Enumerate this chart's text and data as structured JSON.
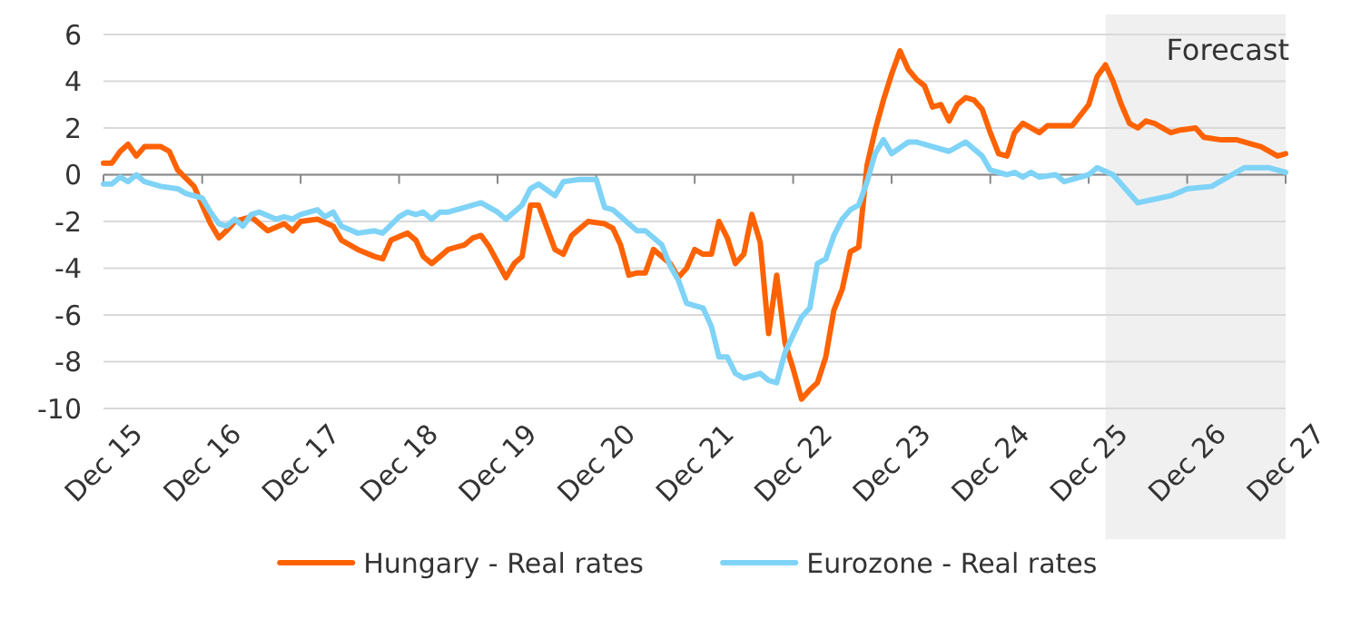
{
  "chart_data": {
    "type": "line",
    "xlim": [
      "2015-12",
      "2027-12"
    ],
    "ylim": [
      -10,
      6
    ],
    "yticks": [
      -10,
      -8,
      -6,
      -4,
      -2,
      0,
      2,
      4,
      6
    ],
    "xticks": [
      {
        "value": "2015-12",
        "label": "Dec 15"
      },
      {
        "value": "2016-12",
        "label": "Dec 16"
      },
      {
        "value": "2017-12",
        "label": "Dec 17"
      },
      {
        "value": "2018-12",
        "label": "Dec 18"
      },
      {
        "value": "2019-12",
        "label": "Dec 19"
      },
      {
        "value": "2020-12",
        "label": "Dec 20"
      },
      {
        "value": "2021-12",
        "label": "Dec 21"
      },
      {
        "value": "2022-12",
        "label": "Dec 22"
      },
      {
        "value": "2023-12",
        "label": "Dec 23"
      },
      {
        "value": "2024-12",
        "label": "Dec 24"
      },
      {
        "value": "2025-12",
        "label": "Dec 25"
      },
      {
        "value": "2026-12",
        "label": "Dec 26"
      },
      {
        "value": "2027-12",
        "label": "Dec 27"
      }
    ],
    "grid": "y",
    "legend": "bottom",
    "bands": [
      {
        "axis": "x",
        "from": "2026-02",
        "to": "2027-12",
        "label": "Forecast",
        "color": "#f0f0f0"
      }
    ],
    "series": [
      {
        "name": "Hungary - Real rates",
        "color": "#ff6200",
        "x": [
          "2015-12",
          "2016-01",
          "2016-02",
          "2016-03",
          "2016-04",
          "2016-05",
          "2016-07",
          "2016-08",
          "2016-09",
          "2016-11",
          "2016-12",
          "2017-01",
          "2017-02",
          "2017-03",
          "2017-04",
          "2017-06",
          "2017-08",
          "2017-10",
          "2017-11",
          "2017-12",
          "2018-02",
          "2018-04",
          "2018-05",
          "2018-07",
          "2018-09",
          "2018-10",
          "2018-11",
          "2019-01",
          "2019-02",
          "2019-03",
          "2019-04",
          "2019-06",
          "2019-08",
          "2019-09",
          "2019-10",
          "2019-11",
          "2020-01",
          "2020-02",
          "2020-03",
          "2020-04",
          "2020-05",
          "2020-07",
          "2020-08",
          "2020-09",
          "2020-11",
          "2021-01",
          "2021-02",
          "2021-03",
          "2021-04",
          "2021-05",
          "2021-06",
          "2021-07",
          "2021-09",
          "2021-10",
          "2021-11",
          "2021-12",
          "2022-01",
          "2022-02",
          "2022-03",
          "2022-04",
          "2022-05",
          "2022-06",
          "2022-07",
          "2022-08",
          "2022-09",
          "2022-10",
          "2022-11",
          "2022-12",
          "2023-01",
          "2023-02",
          "2023-03",
          "2023-04",
          "2023-05",
          "2023-06",
          "2023-07",
          "2023-08",
          "2023-09",
          "2023-10",
          "2023-11",
          "2023-12",
          "2024-01",
          "2024-02",
          "2024-03",
          "2024-04",
          "2024-05",
          "2024-06",
          "2024-07",
          "2024-08",
          "2024-09",
          "2024-10",
          "2024-11",
          "2024-12",
          "2025-01",
          "2025-02",
          "2025-03",
          "2025-04",
          "2025-06",
          "2025-07",
          "2025-10",
          "2025-12",
          "2026-01",
          "2026-02",
          "2026-03",
          "2026-04",
          "2026-05",
          "2026-06",
          "2026-07",
          "2026-08",
          "2026-10",
          "2026-11",
          "2027-01",
          "2027-02",
          "2027-04",
          "2027-06",
          "2027-08",
          "2027-09",
          "2027-11",
          "2027-12"
        ],
        "values": [
          0.5,
          0.5,
          1.0,
          1.3,
          0.8,
          1.2,
          1.2,
          1.0,
          0.2,
          -0.5,
          -1.3,
          -2.1,
          -2.7,
          -2.4,
          -2.0,
          -1.8,
          -2.4,
          -2.1,
          -2.4,
          -2.0,
          -1.9,
          -2.2,
          -2.8,
          -3.2,
          -3.5,
          -3.6,
          -2.8,
          -2.5,
          -2.8,
          -3.5,
          -3.8,
          -3.2,
          -3.0,
          -2.7,
          -2.6,
          -3.1,
          -4.4,
          -3.8,
          -3.5,
          -1.3,
          -1.3,
          -3.2,
          -3.4,
          -2.6,
          -2.0,
          -2.1,
          -2.3,
          -3.0,
          -4.3,
          -4.2,
          -4.2,
          -3.2,
          -3.8,
          -4.4,
          -4.0,
          -3.2,
          -3.4,
          -3.4,
          -2.0,
          -2.7,
          -3.8,
          -3.4,
          -1.7,
          -2.9,
          -6.8,
          -4.3,
          -7.2,
          -8.3,
          -9.6,
          -9.2,
          -8.9,
          -7.8,
          -5.8,
          -4.9,
          -3.3,
          -3.1,
          0.4,
          1.9,
          3.2,
          4.3,
          5.3,
          4.5,
          4.1,
          3.8,
          2.9,
          3.0,
          2.3,
          3.0,
          3.3,
          3.2,
          2.8,
          1.8,
          0.9,
          0.8,
          1.8,
          2.2,
          1.8,
          2.1,
          2.1,
          3.0,
          4.2,
          4.7,
          4.0,
          3.0,
          2.2,
          2.0,
          2.3,
          2.2,
          1.8,
          1.9,
          2.0,
          1.6,
          1.5,
          1.5,
          1.3,
          1.2,
          0.8,
          0.9
        ]
      },
      {
        "name": "Eurozone - Real rates",
        "color": "#7fd3f7",
        "x": [
          "2015-12",
          "2016-01",
          "2016-02",
          "2016-03",
          "2016-04",
          "2016-05",
          "2016-07",
          "2016-09",
          "2016-10",
          "2016-12",
          "2017-01",
          "2017-02",
          "2017-03",
          "2017-04",
          "2017-05",
          "2017-06",
          "2017-07",
          "2017-09",
          "2017-10",
          "2017-11",
          "2017-12",
          "2018-02",
          "2018-03",
          "2018-04",
          "2018-05",
          "2018-07",
          "2018-09",
          "2018-10",
          "2018-12",
          "2019-01",
          "2019-02",
          "2019-03",
          "2019-04",
          "2019-05",
          "2019-06",
          "2019-07",
          "2019-08",
          "2019-10",
          "2019-12",
          "2020-01",
          "2020-03",
          "2020-04",
          "2020-05",
          "2020-07",
          "2020-08",
          "2020-10",
          "2020-12",
          "2021-01",
          "2021-02",
          "2021-04",
          "2021-05",
          "2021-06",
          "2021-08",
          "2021-09",
          "2021-10",
          "2021-11",
          "2022-01",
          "2022-02",
          "2022-03",
          "2022-04",
          "2022-05",
          "2022-06",
          "2022-08",
          "2022-09",
          "2022-10",
          "2022-11",
          "2023-01",
          "2023-02",
          "2023-03",
          "2023-04",
          "2023-05",
          "2023-06",
          "2023-07",
          "2023-08",
          "2023-09",
          "2023-10",
          "2023-11",
          "2023-12",
          "2024-02",
          "2024-03",
          "2024-05",
          "2024-07",
          "2024-09",
          "2024-11",
          "2024-12",
          "2025-02",
          "2025-03",
          "2025-04",
          "2025-05",
          "2025-06",
          "2025-08",
          "2025-09",
          "2025-12",
          "2026-01",
          "2026-03",
          "2026-06",
          "2026-10",
          "2026-12",
          "2027-03",
          "2027-06",
          "2027-07",
          "2027-10",
          "2027-12"
        ],
        "values": [
          -0.4,
          -0.4,
          -0.1,
          -0.3,
          0.0,
          -0.3,
          -0.5,
          -0.6,
          -0.8,
          -1.0,
          -1.6,
          -2.1,
          -2.2,
          -1.9,
          -2.2,
          -1.7,
          -1.6,
          -1.9,
          -1.8,
          -1.9,
          -1.7,
          -1.5,
          -1.8,
          -1.6,
          -2.2,
          -2.5,
          -2.4,
          -2.5,
          -1.8,
          -1.6,
          -1.7,
          -1.6,
          -1.9,
          -1.6,
          -1.6,
          -1.5,
          -1.4,
          -1.2,
          -1.6,
          -1.9,
          -1.3,
          -0.6,
          -0.4,
          -0.9,
          -0.3,
          -0.2,
          -0.2,
          -1.4,
          -1.5,
          -2.1,
          -2.4,
          -2.4,
          -3.0,
          -3.9,
          -4.5,
          -5.5,
          -5.7,
          -6.5,
          -7.8,
          -7.8,
          -8.5,
          -8.7,
          -8.5,
          -8.8,
          -8.9,
          -7.6,
          -6.1,
          -5.7,
          -3.8,
          -3.6,
          -2.6,
          -1.9,
          -1.5,
          -1.3,
          -0.3,
          0.9,
          1.5,
          0.9,
          1.4,
          1.4,
          1.2,
          1.0,
          1.4,
          0.8,
          0.2,
          0.0,
          0.1,
          -0.1,
          0.1,
          -0.1,
          0.0,
          -0.3,
          0.0,
          0.3,
          0.0,
          -1.2,
          -0.9,
          -0.6,
          -0.5,
          0.1,
          0.3,
          0.3,
          0.1
        ]
      }
    ]
  }
}
